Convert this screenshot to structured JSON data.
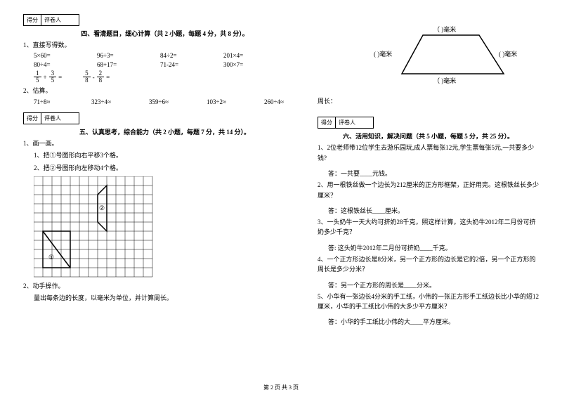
{
  "scorebox": {
    "score": "得分",
    "grader": "评卷人"
  },
  "sec4": {
    "title": "四、看清题目，细心计算（共 2 小题，每题 4 分，共 8 分）。",
    "q1": "1、直接写得数。",
    "row1": {
      "a": "5×60=",
      "b": "96÷3=",
      "c": "84÷2=",
      "d": "201×4="
    },
    "row2": {
      "a": "80÷4=",
      "b": "68+17=",
      "c": "71-24=",
      "d": "300×7="
    },
    "frac1": {
      "n1": "1",
      "d1": "5",
      "op": "+",
      "n2": "3",
      "d2": "5",
      "eq": "="
    },
    "frac2": {
      "n1": "5",
      "d1": "8",
      "op": "-",
      "n2": "2",
      "d2": "8",
      "eq": "="
    },
    "q2": "2、估算。",
    "row3": {
      "a": "71÷8≈",
      "b": "323÷4≈",
      "c": "359÷6≈",
      "d": "103÷2≈",
      "e": "260÷4≈"
    }
  },
  "sec5": {
    "title": "五、认真思考，综合能力（共 2 小题，每题 7 分，共 14 分）。",
    "q1": "1、画一画。",
    "q1a": "1、把①号图形向右平移3个格。",
    "q1b": "2、把②号图形向左移动4个格。",
    "shape1": "①",
    "shape2": "②",
    "q2": "2、动手操作。",
    "q2desc": "量出每条边的长度，以毫米为单位，并计算周长。"
  },
  "trap": {
    "top": "（    )毫米",
    "left": "(    )毫米",
    "right": "(    )毫米",
    "bottom": "（    )毫米",
    "perimeter": "周长："
  },
  "sec6": {
    "title": "六、活用知识，解决问题（共 5 小题，每题 5 分，共 25 分）。",
    "q1": "1、2位老师带12位学生去游乐园玩,成人票每张12元,学生票每张5元,一共要多少钱?",
    "a1": "答：一共要____元钱。",
    "q2": "2、用一根铁丝做一个边长为212厘米的正方形框架，正好用完。这根铁丝长多少厘米？",
    "a2": "答：这根铁丝长____厘米。",
    "q3": "3、一头奶牛一天大约可挤奶28千克，照这样计算，这头奶牛2012年二月份可挤奶多少千克？",
    "a3": "答: 这头奶牛2012年二月份可挤奶____千克。",
    "q4": "4、一个正方形边长是8分米，另一个正方形的边长是它的2倍，另一个正方形的周长是多少分米？",
    "a4": "答：另一个正方形的周长是____分米。",
    "q5": "5、小华有一张边长4分米的手工纸，小伟的一张正方形手工纸边长比小华的短12厘米，小华的手工纸比小伟的大多少平方厘米？",
    "a5": "答：小华的手工纸比小伟的大____平方厘米。"
  },
  "footer": "第 2 页 共 3 页",
  "grid": {
    "cols": 13,
    "rows": 11,
    "cell": 13,
    "stroke": "#000000"
  }
}
